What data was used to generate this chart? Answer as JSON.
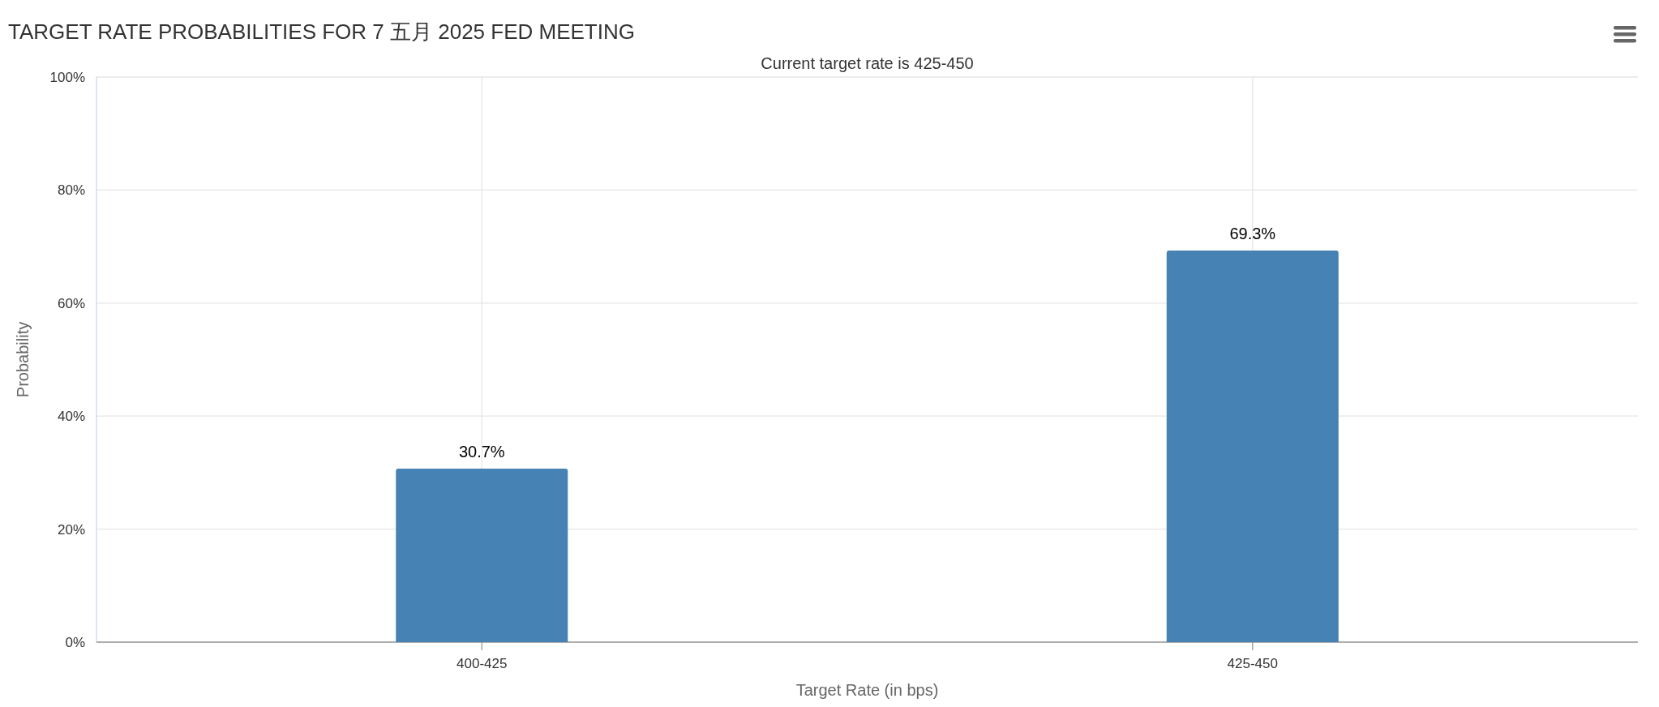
{
  "chart_data": {
    "type": "bar",
    "title": "TARGET RATE PROBABILITIES FOR 7 五月 2025 FED MEETING",
    "subtitle": "Current target rate is 425-450",
    "xlabel": "Target Rate (in bps)",
    "ylabel": "Probability",
    "categories": [
      "400-425",
      "425-450"
    ],
    "values": [
      30.7,
      69.3
    ],
    "value_labels": [
      "30.7%",
      "69.3%"
    ],
    "color": "#4682b4",
    "ylim": [
      0,
      100
    ],
    "yticks": [
      {
        "value": 0,
        "label": "0%"
      },
      {
        "value": 20,
        "label": "20%"
      },
      {
        "value": 40,
        "label": "40%"
      },
      {
        "value": 60,
        "label": "60%"
      },
      {
        "value": 80,
        "label": "80%"
      },
      {
        "value": 100,
        "label": "100%"
      }
    ],
    "grid": true
  }
}
